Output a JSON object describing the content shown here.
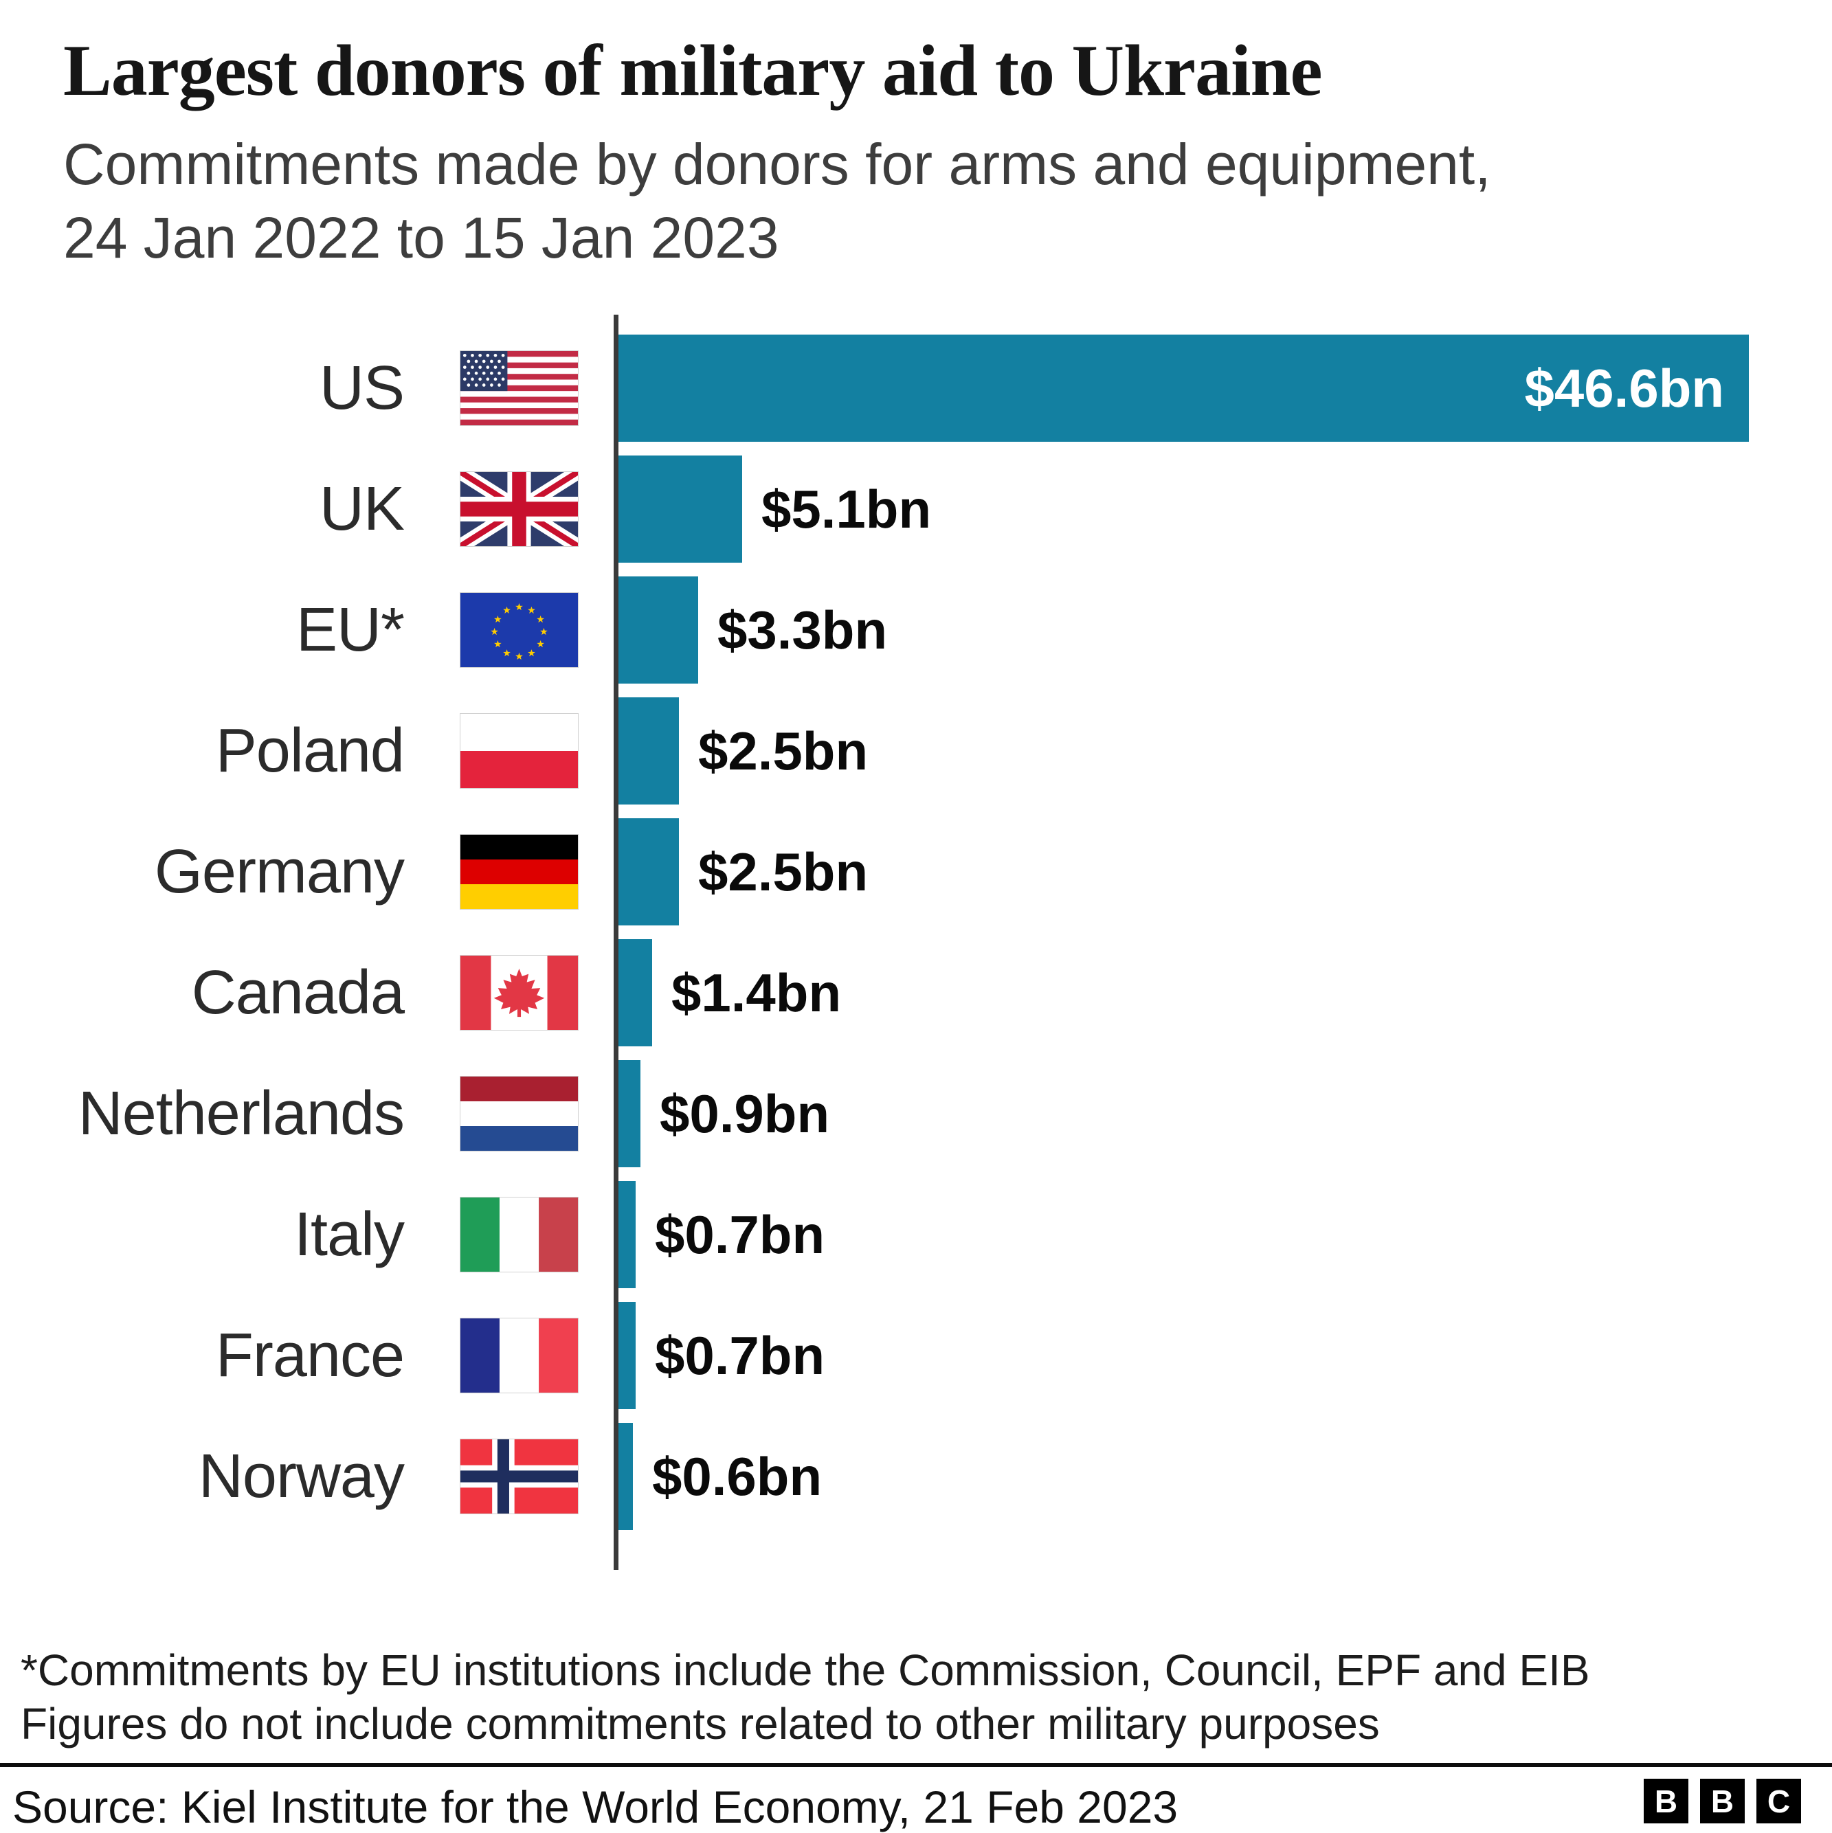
{
  "header": {
    "title": "Largest donors of military aid to Ukraine",
    "subtitle_line1": "Commitments made by donors for arms and equipment,",
    "subtitle_line2": "24 Jan 2022 to 15 Jan 2023"
  },
  "chart": {
    "bar_color": "#1380A1",
    "max_value": 46.6,
    "rows": [
      {
        "label": "US",
        "flag": "us",
        "value": 46.6,
        "value_label": "$46.6bn"
      },
      {
        "label": "UK",
        "flag": "uk",
        "value": 5.1,
        "value_label": "$5.1bn"
      },
      {
        "label": "EU*",
        "flag": "eu",
        "value": 3.3,
        "value_label": "$3.3bn"
      },
      {
        "label": "Poland",
        "flag": "pl",
        "value": 2.5,
        "value_label": "$2.5bn"
      },
      {
        "label": "Germany",
        "flag": "de",
        "value": 2.5,
        "value_label": "$2.5bn"
      },
      {
        "label": "Canada",
        "flag": "ca",
        "value": 1.4,
        "value_label": "$1.4bn"
      },
      {
        "label": "Netherlands",
        "flag": "nl",
        "value": 0.9,
        "value_label": "$0.9bn"
      },
      {
        "label": "Italy",
        "flag": "it",
        "value": 0.7,
        "value_label": "$0.7bn"
      },
      {
        "label": "France",
        "flag": "fr",
        "value": 0.7,
        "value_label": "$0.7bn"
      },
      {
        "label": "Norway",
        "flag": "no",
        "value": 0.6,
        "value_label": "$0.6bn"
      }
    ]
  },
  "chart_data": {
    "type": "bar",
    "orientation": "horizontal",
    "title": "Largest donors of military aid to Ukraine",
    "subtitle": "Commitments made by donors for arms and equipment, 24 Jan 2022 to 15 Jan 2023",
    "categories": [
      "US",
      "UK",
      "EU*",
      "Poland",
      "Germany",
      "Canada",
      "Netherlands",
      "Italy",
      "France",
      "Norway"
    ],
    "values": [
      46.6,
      5.1,
      3.3,
      2.5,
      2.5,
      1.4,
      0.9,
      0.7,
      0.7,
      0.6
    ],
    "value_labels": [
      "$46.6bn",
      "$5.1bn",
      "$3.3bn",
      "$2.5bn",
      "$2.5bn",
      "$1.4bn",
      "$0.9bn",
      "$0.7bn",
      "$0.7bn",
      "$0.6bn"
    ],
    "unit": "US$ billions",
    "xlim": [
      0,
      46.6
    ],
    "grid": false,
    "legend": false,
    "bar_color": "#1380A1"
  },
  "footnotes": {
    "line1": "*Commitments by EU institutions include the Commission, Council, EPF and EIB",
    "line2": "Figures do not include commitments related to other military purposes"
  },
  "source": "Source: Kiel Institute for the World Economy, 21 Feb 2023",
  "logo": {
    "letters": [
      "B",
      "B",
      "C"
    ]
  }
}
